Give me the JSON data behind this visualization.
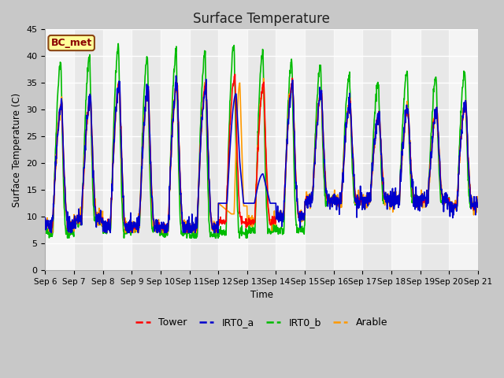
{
  "title": "Surface Temperature",
  "ylabel": "Surface Temperature (C)",
  "xlabel": "Time",
  "ylim": [
    0,
    45
  ],
  "ytick_vals": [
    0,
    5,
    10,
    15,
    20,
    25,
    30,
    35,
    40,
    45
  ],
  "xtick_labels": [
    "Sep 6",
    "Sep 7",
    "Sep 8",
    "Sep 9",
    "Sep 10",
    "Sep 11",
    "Sep 12",
    "Sep 13",
    "Sep 14",
    "Sep 15",
    "Sep 16",
    "Sep 17",
    "Sep 18",
    "Sep 19",
    "Sep 20",
    "Sep 21"
  ],
  "fig_bg": "#c8c8c8",
  "plot_bg": "#e8e8e8",
  "band_color": "#d8d8d8",
  "annotation_text": "BC_met",
  "annotation_fg": "#8b0000",
  "annotation_bg": "#ffff99",
  "annotation_border": "#8b4513",
  "series_colors": {
    "Tower": "#ff0000",
    "IRT0_a": "#0000cc",
    "IRT0_b": "#00bb00",
    "Arable": "#ff9900"
  },
  "series_linewidth": 1.2,
  "n_days": 15,
  "pts_per_day": 96,
  "day_peaks_tower": [
    31,
    32,
    35,
    34,
    35,
    35,
    36,
    35,
    35,
    33,
    31,
    29,
    30,
    30,
    31
  ],
  "day_peaks_irtb": [
    39,
    40,
    42,
    40,
    41,
    41,
    42,
    41,
    39,
    38,
    36,
    35,
    37,
    36,
    37
  ],
  "day_mins_tower": [
    8.5,
    9.5,
    8,
    8,
    8,
    8,
    9,
    9,
    10,
    13,
    13,
    13,
    13,
    13,
    12
  ],
  "day_mins_irtb": [
    7,
    9,
    7.5,
    7.5,
    7,
    6.5,
    7,
    7.5,
    7.5,
    13,
    13,
    13,
    13,
    13,
    12
  ]
}
